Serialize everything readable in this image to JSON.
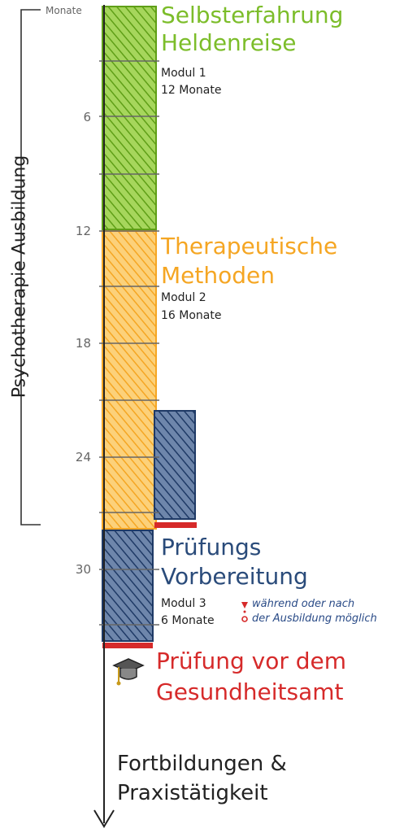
{
  "axis": {
    "unit_label": "Monate",
    "ticks": [
      "6",
      "12",
      "18",
      "24",
      "30"
    ],
    "side_label": "Psychotherapie Ausbildung",
    "end_label_line1": "Fortbildungen &",
    "end_label_line2": "Praxistätigkeit"
  },
  "modules": [
    {
      "title_line1": "Selbsterfahrung",
      "title_line2": "Heldenreise",
      "module": "Modul 1",
      "duration": "12 Monate",
      "color": "#7cbd2a"
    },
    {
      "title_line1": "Therapeutische",
      "title_line2": "Methoden",
      "module": "Modul 2",
      "duration": "16 Monate",
      "color": "#f5b335"
    },
    {
      "title_line1": "Prüfungs",
      "title_line2": "Vorbereitung",
      "module": "Modul 3",
      "duration": "6 Monate",
      "color": "#2a4b7a"
    }
  ],
  "note": {
    "line1": "während oder nach",
    "line2": "der Ausbildung möglich"
  },
  "exam": {
    "line1": "Prüfung vor dem",
    "line2": "Gesundheitsamt",
    "color": "#d62a2a"
  },
  "cap_icon": "graduation-cap-icon"
}
